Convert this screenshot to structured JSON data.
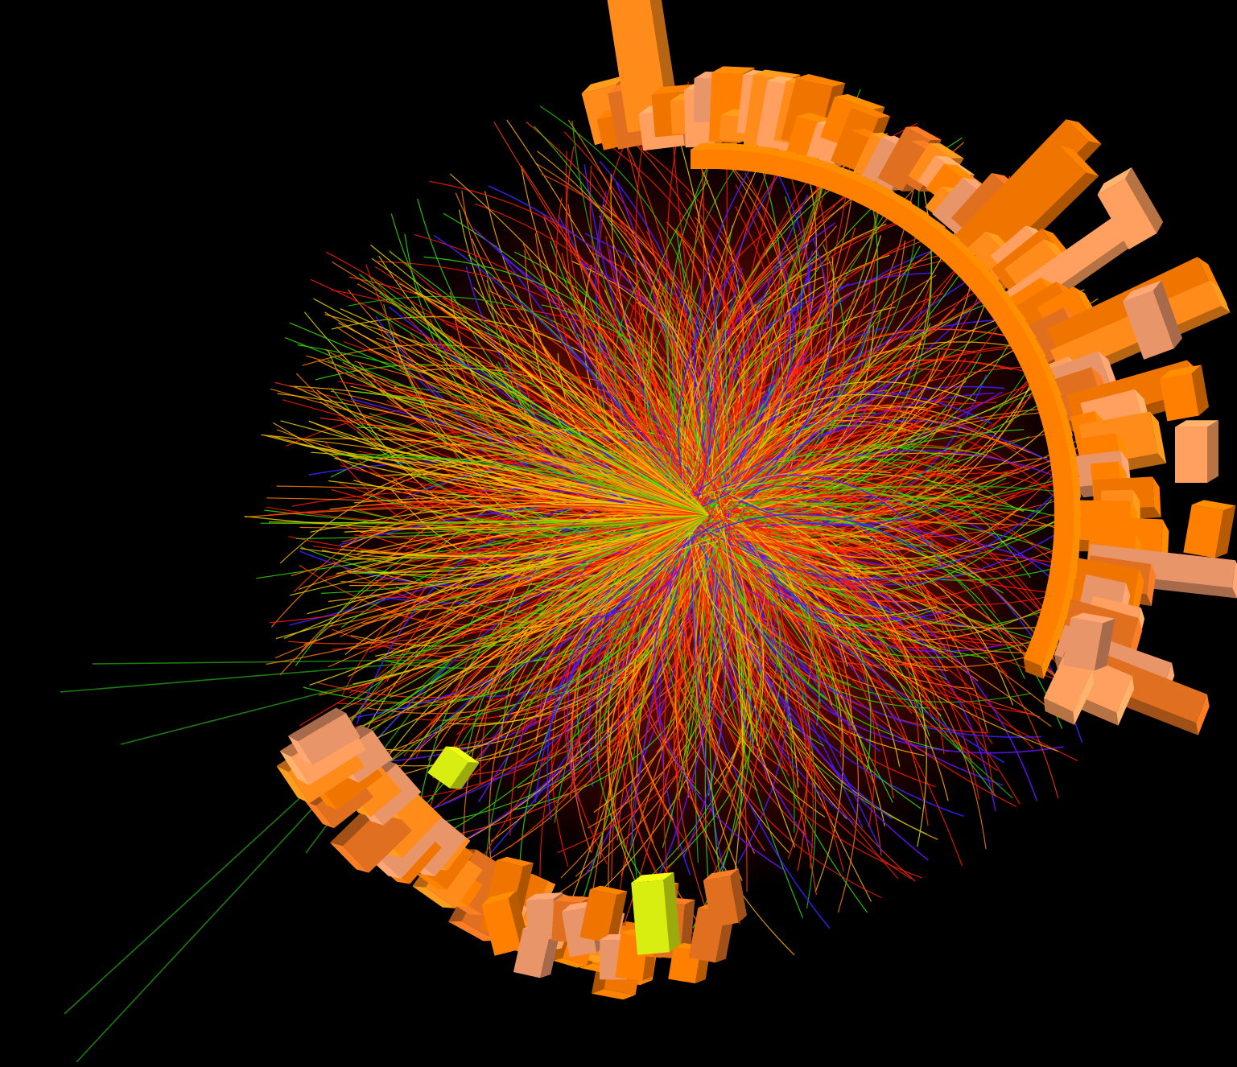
{
  "scene": {
    "background": "#000000",
    "track_colors": [
      "#ff1a00",
      "#ff3a00",
      "#ff7a00",
      "#ffb000",
      "#e8d400",
      "#33dd00",
      "#22c000",
      "#3a22ff",
      "#6a10ff"
    ],
    "calorimeter_colors": [
      "#ff7f00",
      "#f07400",
      "#ff8c1a",
      "#e07020",
      "#ffa060",
      "#e8956a"
    ],
    "highlight_color": "#d8ee10",
    "glow_color": "#ff2200"
  }
}
